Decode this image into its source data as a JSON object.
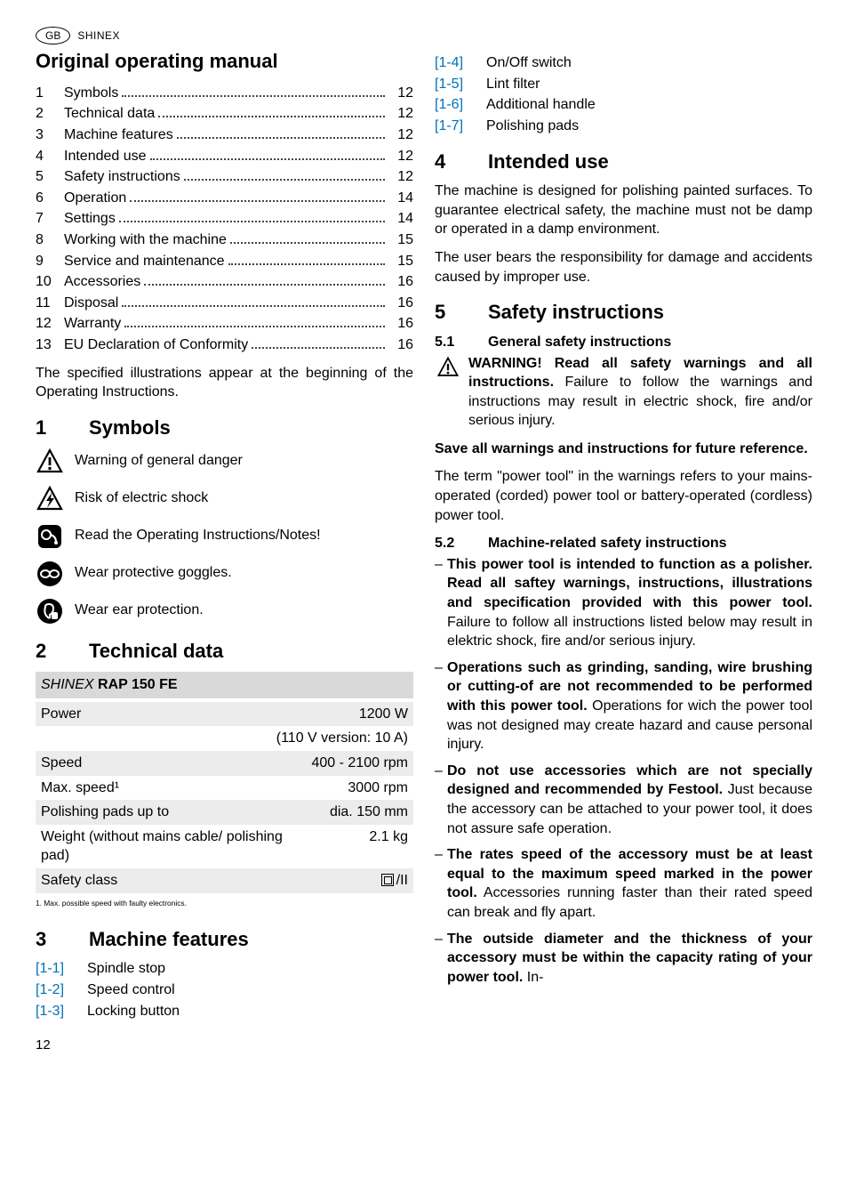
{
  "header": {
    "region": "GB",
    "brand": "SHINEX"
  },
  "title": "Original operating manual",
  "toc": [
    {
      "n": "1",
      "label": "Symbols",
      "p": "12"
    },
    {
      "n": "2",
      "label": "Technical data",
      "p": "12"
    },
    {
      "n": "3",
      "label": "Machine features",
      "p": "12"
    },
    {
      "n": "4",
      "label": "Intended use",
      "p": "12"
    },
    {
      "n": "5",
      "label": "Safety instructions",
      "p": "12"
    },
    {
      "n": "6",
      "label": "Operation",
      "p": "14"
    },
    {
      "n": "7",
      "label": "Settings",
      "p": "14"
    },
    {
      "n": "8",
      "label": "Working with the machine",
      "p": "15"
    },
    {
      "n": "9",
      "label": "Service and maintenance",
      "p": "15"
    },
    {
      "n": "10",
      "label": "Accessories",
      "p": "16"
    },
    {
      "n": "11",
      "label": "Disposal",
      "p": "16"
    },
    {
      "n": "12",
      "label": "Warranty",
      "p": "16"
    },
    {
      "n": "13",
      "label": "EU Declaration of Conformity",
      "p": "16"
    }
  ],
  "toc_note": "The specified illustrations appear at the beginning of the Operating Instructions.",
  "sec1": {
    "num": "1",
    "title": "Symbols"
  },
  "symbols": [
    {
      "icon": "warn-triangle",
      "text": "Warning of general danger"
    },
    {
      "icon": "shock-triangle",
      "text": "Risk of electric shock"
    },
    {
      "icon": "manual-circle",
      "text": "Read the Operating Instructions/Notes!"
    },
    {
      "icon": "goggles-circle",
      "text": "Wear protective goggles."
    },
    {
      "icon": "ear-circle",
      "text": "Wear ear protection."
    }
  ],
  "sec2": {
    "num": "2",
    "title": "Technical data"
  },
  "tech": {
    "model_italic": "SHINEX",
    "model_bold": "RAP 150 FE",
    "rows": [
      {
        "l": "Power",
        "r": "1200 W",
        "shade": true
      },
      {
        "l": "",
        "r": "(110 V version: 10 A)",
        "shade": false
      },
      {
        "l": "Speed",
        "r": "400 - 2100 rpm",
        "shade": true
      },
      {
        "l": "Max. speed¹",
        "r": "3000 rpm",
        "shade": false
      },
      {
        "l": "Polishing pads up to",
        "r": "dia.  150 mm",
        "shade": true
      },
      {
        "l": "Weight (without mains cable/ polishing pad)",
        "r": "2.1 kg",
        "shade": false
      },
      {
        "l": "Safety class",
        "r": "__SC__",
        "shade": true
      }
    ],
    "safety_class_suffix": "/II",
    "footnote": "1. Max. possible speed with faulty electronics."
  },
  "sec3": {
    "num": "3",
    "title": "Machine features"
  },
  "features": [
    {
      "ref": "[1-1]",
      "text": "Spindle stop"
    },
    {
      "ref": "[1-2]",
      "text": "Speed control"
    },
    {
      "ref": "[1-3]",
      "text": "Locking button"
    },
    {
      "ref": "[1-4]",
      "text": "On/Off switch"
    },
    {
      "ref": "[1-5]",
      "text": "Lint filter"
    },
    {
      "ref": "[1-6]",
      "text": "Additional handle"
    },
    {
      "ref": "[1-7]",
      "text": "Polishing pads"
    }
  ],
  "sec4": {
    "num": "4",
    "title": "Intended use",
    "p1": "The machine is designed for polishing painted surfaces. To guarantee electrical safety, the machine must not be damp or operated in a damp environment.",
    "p2": "The user bears the responsibility for damage and accidents caused by improper use."
  },
  "sec5": {
    "num": "5",
    "title": "Safety instructions"
  },
  "sec5_1": {
    "num": "5.1",
    "title": "General safety instructions",
    "warn_bold": "WARNING! Read all safety warnings and all instructions.",
    "warn_rest": " Failure to follow the warnings and instructions may result in electric shock, fire and/or serious injury.",
    "save": "Save all warnings and instructions for future reference.",
    "term": "The term \"power tool\" in the warnings refers to your mains-operated (corded) power tool or battery-operated (cordless) power tool."
  },
  "sec5_2": {
    "num": "5.2",
    "title": "Machine-related safety instructions",
    "bullets": [
      {
        "bold": "This power tool is intended to function as a polisher. Read all saftey warnings, instructions, illustrations and specification provided with this power tool.",
        "rest": "  Failure to follow all instructions listed below may result in elektric shock, fire and/or serious injury."
      },
      {
        "bold": "Operations such as grinding, sanding, wire brushing or cutting-of are not recommended to be performed with this power tool.",
        "rest": " Operations for wich the power tool was not designed may create hazard and cause personal injury."
      },
      {
        "bold": "Do not use accessories which are not specially designed and recommended by Festool.",
        "rest": " Just because the accessory can be attached to your power tool, it does not assure safe operation."
      },
      {
        "bold": "The rates speed of the accessory must be at least equal to the maximum speed marked in the power tool.",
        "rest": "  Accessories running faster than their rated speed can break and fly apart."
      },
      {
        "bold": "The outside diameter and the thickness of your accessory must be within the capacity rating of your power tool.",
        "rest": " In-"
      }
    ]
  },
  "page_number": "12"
}
